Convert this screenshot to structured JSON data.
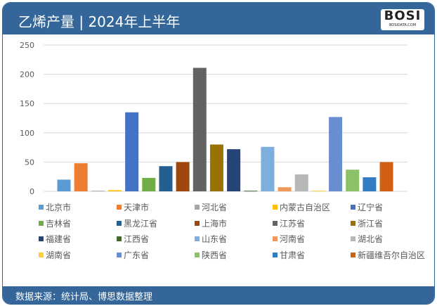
{
  "header": {
    "title": "乙烯产量 | 2024年上半年",
    "logo_text": "BOSI",
    "logo_sub": "BOSIDATA.COM"
  },
  "footer": {
    "source": "数据来源：统计局、博思数据整理"
  },
  "chart_data": {
    "type": "bar",
    "title": "",
    "xlabel": "",
    "ylabel": "",
    "ylim": [
      0,
      250
    ],
    "yticks": [
      "0",
      "50",
      "100",
      "150",
      "200",
      "250"
    ],
    "grid": true,
    "legend_position": "bottom",
    "categories": [
      "北京市",
      "天津市",
      "河北省",
      "内蒙古自治区",
      "辽宁省",
      "吉林省",
      "黑龙江省",
      "上海市",
      "江苏省",
      "浙江省",
      "福建省",
      "江西省",
      "山东省",
      "河南省",
      "湖北省",
      "湖南省",
      "广东省",
      "陕西省",
      "甘肃省",
      "新疆维吾尔自治区"
    ],
    "values": [
      20,
      48,
      1,
      2,
      135,
      23,
      43,
      50,
      211,
      80,
      72,
      1,
      76,
      7,
      29,
      1,
      127,
      37,
      24,
      50
    ],
    "colors": [
      "#5B9BD5",
      "#ED7D31",
      "#A5A5A5",
      "#FFC000",
      "#4472C4",
      "#70AD47",
      "#255E91",
      "#9E480E",
      "#636363",
      "#997300",
      "#264478",
      "#43682B",
      "#7CAFDD",
      "#F1975A",
      "#B7B7B7",
      "#FFCD33",
      "#698ED0",
      "#8CC168",
      "#327DC2",
      "#D26012"
    ]
  }
}
